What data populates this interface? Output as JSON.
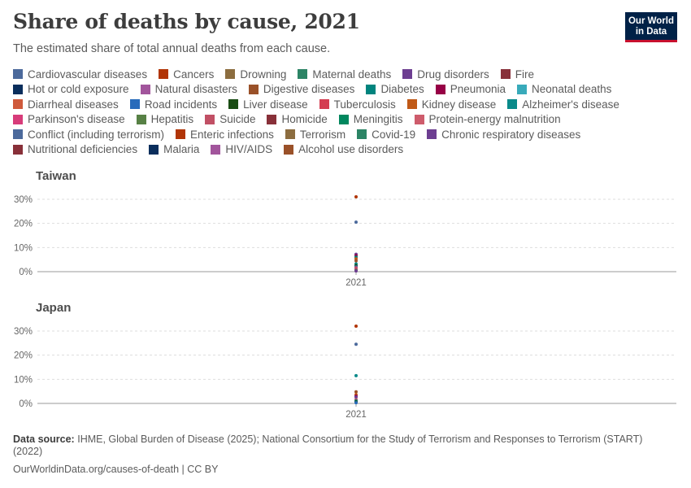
{
  "title": "Share of deaths by cause, 2021",
  "subtitle": "The estimated share of total annual deaths from each cause.",
  "logo": {
    "line1": "Our World",
    "line2": "in Data"
  },
  "footer": {
    "source_label": "Data source:",
    "source_text": "IHME, Global Burden of Disease (2025); National Consortium for the Study of Terrorism and Responses to Terrorism (START) (2022)",
    "url_text": "OurWorldinData.org/causes-of-death | CC BY"
  },
  "legend": [
    [
      {
        "label": "Cardiovascular diseases",
        "color": "#4c6a9c"
      },
      {
        "label": "Cancers",
        "color": "#b13507"
      },
      {
        "label": "Drowning",
        "color": "#8c6d3f"
      },
      {
        "label": "Maternal deaths",
        "color": "#2c8465"
      },
      {
        "label": "Drug disorders",
        "color": "#6d3e91"
      },
      {
        "label": "Fire",
        "color": "#883039"
      }
    ],
    [
      {
        "label": "Hot or cold exposure",
        "color": "#0a2e5c"
      },
      {
        "label": "Natural disasters",
        "color": "#a2559c"
      },
      {
        "label": "Digestive diseases",
        "color": "#9a5129"
      },
      {
        "label": "Diabetes",
        "color": "#00847e"
      },
      {
        "label": "Pneumonia",
        "color": "#970046"
      },
      {
        "label": "Neonatal deaths",
        "color": "#38aaba"
      }
    ],
    [
      {
        "label": "Diarrheal diseases",
        "color": "#cf5a3c"
      },
      {
        "label": "Road incidents",
        "color": "#286bbb"
      },
      {
        "label": "Liver disease",
        "color": "#1a4d14"
      },
      {
        "label": "Tuberculosis",
        "color": "#d43d51"
      },
      {
        "label": "Kidney disease",
        "color": "#c05917"
      },
      {
        "label": "Alzheimer's disease",
        "color": "#0a8a8a"
      }
    ],
    [
      {
        "label": "Parkinson's disease",
        "color": "#d73c7a"
      },
      {
        "label": "Hepatitis",
        "color": "#578145"
      },
      {
        "label": "Suicide",
        "color": "#c15065"
      },
      {
        "label": "Homicide",
        "color": "#883039"
      },
      {
        "label": "Meningitis",
        "color": "#00875e"
      },
      {
        "label": "Protein-energy malnutrition",
        "color": "#ce5c6c"
      }
    ],
    [
      {
        "label": "Conflict (including terrorism)",
        "color": "#4c6a9c"
      },
      {
        "label": "Enteric infections",
        "color": "#b13507"
      },
      {
        "label": "Terrorism",
        "color": "#8c6d3f"
      },
      {
        "label": "Covid-19",
        "color": "#2c8465"
      },
      {
        "label": "Chronic respiratory diseases",
        "color": "#6d3e91"
      }
    ],
    [
      {
        "label": "Nutritional deficiencies",
        "color": "#883039"
      },
      {
        "label": "Malaria",
        "color": "#0a2e5c"
      },
      {
        "label": "HIV/AIDS",
        "color": "#a2559c"
      },
      {
        "label": "Alcohol use disorders",
        "color": "#9a5129"
      }
    ]
  ],
  "chart_data": [
    {
      "type": "scatter",
      "title": "Taiwan",
      "x": [
        "2021"
      ],
      "ylim": [
        0,
        31
      ],
      "yticks": [
        0,
        10,
        20,
        30
      ],
      "ytick_labels": [
        "0%",
        "10%",
        "20%",
        "30%"
      ],
      "grid": true,
      "series": [
        {
          "name": "Cancers",
          "color": "#b13507",
          "values": [
            31.0
          ]
        },
        {
          "name": "Cardiovascular diseases",
          "color": "#4c6a9c",
          "values": [
            20.5
          ]
        },
        {
          "name": "Chronic respiratory diseases",
          "color": "#6d3e91",
          "values": [
            7.2
          ]
        },
        {
          "name": "Pneumonia",
          "color": "#970046",
          "values": [
            6.6
          ]
        },
        {
          "name": "Diabetes",
          "color": "#00847e",
          "values": [
            6.0
          ]
        },
        {
          "name": "Kidney disease",
          "color": "#c05917",
          "values": [
            5.3
          ]
        },
        {
          "name": "Digestive diseases",
          "color": "#9a5129",
          "values": [
            4.5
          ]
        },
        {
          "name": "Alzheimer's disease",
          "color": "#0a8a8a",
          "values": [
            3.2
          ]
        },
        {
          "name": "Liver disease",
          "color": "#1a4d14",
          "values": [
            2.5
          ]
        },
        {
          "name": "Road incidents",
          "color": "#286bbb",
          "values": [
            2.0
          ]
        },
        {
          "name": "Suicide",
          "color": "#c15065",
          "values": [
            1.6
          ]
        },
        {
          "name": "Parkinson's disease",
          "color": "#d73c7a",
          "values": [
            1.0
          ]
        },
        {
          "name": "Hepatitis",
          "color": "#578145",
          "values": [
            0.6
          ]
        },
        {
          "name": "Drug disorders",
          "color": "#6d3e91",
          "values": [
            0.3
          ]
        }
      ]
    },
    {
      "type": "scatter",
      "title": "Japan",
      "x": [
        "2021"
      ],
      "ylim": [
        0,
        32
      ],
      "yticks": [
        0,
        10,
        20,
        30
      ],
      "ytick_labels": [
        "0%",
        "10%",
        "20%",
        "30%"
      ],
      "grid": true,
      "series": [
        {
          "name": "Cancers",
          "color": "#b13507",
          "values": [
            32.0
          ]
        },
        {
          "name": "Cardiovascular diseases",
          "color": "#4c6a9c",
          "values": [
            24.5
          ]
        },
        {
          "name": "Alzheimer's disease",
          "color": "#0a8a8a",
          "values": [
            11.5
          ]
        },
        {
          "name": "Digestive diseases",
          "color": "#9a5129",
          "values": [
            4.8
          ]
        },
        {
          "name": "Kidney disease",
          "color": "#c05917",
          "values": [
            3.6
          ]
        },
        {
          "name": "Pneumonia",
          "color": "#970046",
          "values": [
            3.0
          ]
        },
        {
          "name": "Chronic respiratory diseases",
          "color": "#6d3e91",
          "values": [
            2.6
          ]
        },
        {
          "name": "Suicide",
          "color": "#c15065",
          "values": [
            1.5
          ]
        },
        {
          "name": "Diabetes",
          "color": "#00847e",
          "values": [
            1.0
          ]
        },
        {
          "name": "Liver disease",
          "color": "#1a4d14",
          "values": [
            0.6
          ]
        },
        {
          "name": "Road incidents",
          "color": "#286bbb",
          "values": [
            0.3
          ]
        }
      ]
    }
  ]
}
